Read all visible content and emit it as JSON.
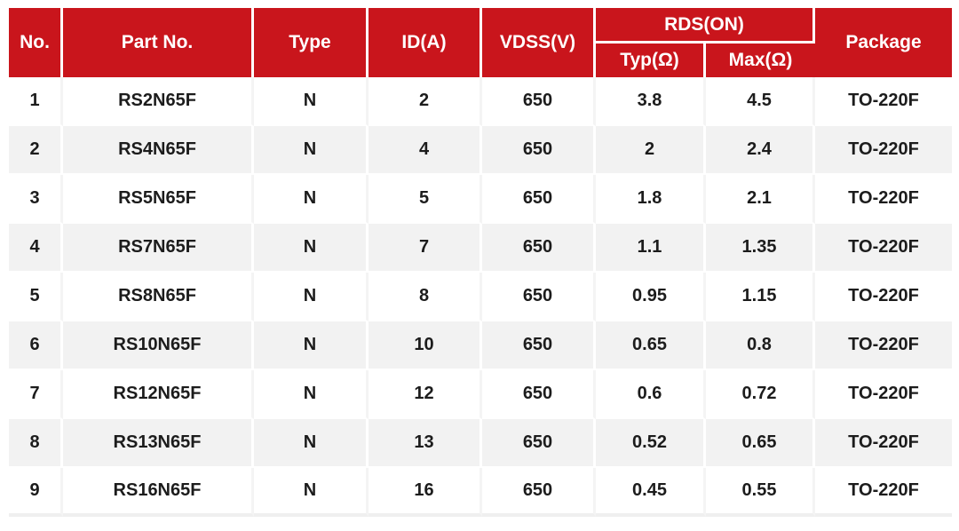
{
  "colors": {
    "header_bg": "#c9151c",
    "header_text": "#ffffff",
    "body_text": "#1c1c1c",
    "row_alt_bg": "#f2f2f2",
    "table_bottom_border": "#efefef"
  },
  "table": {
    "headers": {
      "no": "No.",
      "part_no": "Part No.",
      "type": "Type",
      "id": "ID(A)",
      "vdss": "VDSS(V)",
      "rds_on": "RDS(ON)",
      "rds_typ": "Typ(Ω)",
      "rds_max": "Max(Ω)",
      "package": "Package"
    },
    "row_keys": [
      "no",
      "part",
      "type",
      "id",
      "vdss",
      "typ",
      "max",
      "pkg"
    ],
    "rows": [
      {
        "no": "1",
        "part": "RS2N65F",
        "type": "N",
        "id": "2",
        "vdss": "650",
        "typ": "3.8",
        "max": "4.5",
        "pkg": "TO-220F"
      },
      {
        "no": "2",
        "part": "RS4N65F",
        "type": "N",
        "id": "4",
        "vdss": "650",
        "typ": "2",
        "max": "2.4",
        "pkg": "TO-220F"
      },
      {
        "no": "3",
        "part": "RS5N65F",
        "type": "N",
        "id": "5",
        "vdss": "650",
        "typ": "1.8",
        "max": "2.1",
        "pkg": "TO-220F"
      },
      {
        "no": "4",
        "part": "RS7N65F",
        "type": "N",
        "id": "7",
        "vdss": "650",
        "typ": "1.1",
        "max": "1.35",
        "pkg": "TO-220F"
      },
      {
        "no": "5",
        "part": "RS8N65F",
        "type": "N",
        "id": "8",
        "vdss": "650",
        "typ": "0.95",
        "max": "1.15",
        "pkg": "TO-220F"
      },
      {
        "no": "6",
        "part": "RS10N65F",
        "type": "N",
        "id": "10",
        "vdss": "650",
        "typ": "0.65",
        "max": "0.8",
        "pkg": "TO-220F"
      },
      {
        "no": "7",
        "part": "RS12N65F",
        "type": "N",
        "id": "12",
        "vdss": "650",
        "typ": "0.6",
        "max": "0.72",
        "pkg": "TO-220F"
      },
      {
        "no": "8",
        "part": "RS13N65F",
        "type": "N",
        "id": "13",
        "vdss": "650",
        "typ": "0.52",
        "max": "0.65",
        "pkg": "TO-220F"
      },
      {
        "no": "9",
        "part": "RS16N65F",
        "type": "N",
        "id": "16",
        "vdss": "650",
        "typ": "0.45",
        "max": "0.55",
        "pkg": "TO-220F"
      }
    ]
  }
}
